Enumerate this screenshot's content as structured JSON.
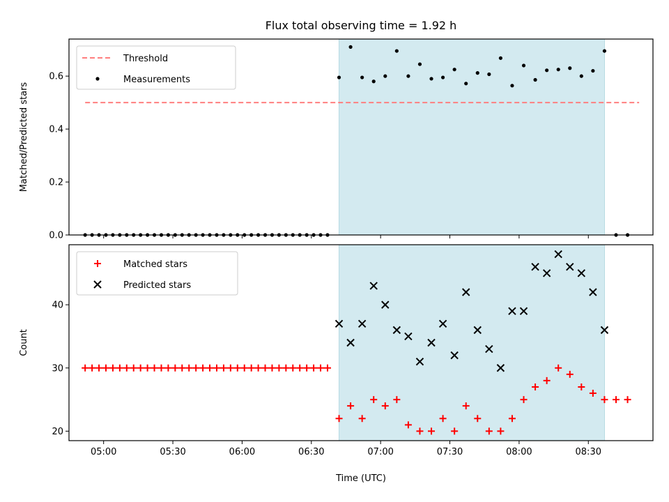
{
  "chart_data": [
    {
      "type": "scatter",
      "title": "Flux total observing time = 1.92 h",
      "xlabel": "",
      "ylabel": "Matched/Predicted stars",
      "ylim": [
        0,
        0.74
      ],
      "yticks": [
        "0.0",
        "0.2",
        "0.4",
        "0.6"
      ],
      "xticks": [
        "05:00",
        "05:30",
        "06:00",
        "06:30",
        "07:00",
        "07:30",
        "08:00",
        "08:30"
      ],
      "xlim": [
        "04:45",
        "08:58"
      ],
      "shaded_interval": [
        "06:42",
        "08:37"
      ],
      "shade_color": "#d3eaf0",
      "legend_position": "upper left",
      "threshold": {
        "name": "Threshold",
        "value": 0.5,
        "x_range": [
          "04:52",
          "08:52"
        ],
        "color": "#ff7f7f",
        "style": "dashed"
      },
      "series": [
        {
          "name": "Measurements",
          "marker": "dot",
          "color": "#000000",
          "points": [
            [
              "04:52",
              0
            ],
            [
              "04:55",
              0
            ],
            [
              "04:58",
              0
            ],
            [
              "05:01",
              0
            ],
            [
              "05:04",
              0
            ],
            [
              "05:07",
              0
            ],
            [
              "05:10",
              0
            ],
            [
              "05:13",
              0
            ],
            [
              "05:16",
              0
            ],
            [
              "05:19",
              0
            ],
            [
              "05:22",
              0
            ],
            [
              "05:25",
              0
            ],
            [
              "05:28",
              0
            ],
            [
              "05:31",
              0
            ],
            [
              "05:34",
              0
            ],
            [
              "05:37",
              0
            ],
            [
              "05:40",
              0
            ],
            [
              "05:43",
              0
            ],
            [
              "05:46",
              0
            ],
            [
              "05:49",
              0
            ],
            [
              "05:52",
              0
            ],
            [
              "05:55",
              0
            ],
            [
              "05:58",
              0
            ],
            [
              "06:01",
              0
            ],
            [
              "06:04",
              0
            ],
            [
              "06:07",
              0
            ],
            [
              "06:10",
              0
            ],
            [
              "06:13",
              0
            ],
            [
              "06:16",
              0
            ],
            [
              "06:19",
              0
            ],
            [
              "06:22",
              0
            ],
            [
              "06:25",
              0
            ],
            [
              "06:28",
              0
            ],
            [
              "06:31",
              0
            ],
            [
              "06:34",
              0
            ],
            [
              "06:37",
              0
            ],
            [
              "06:42",
              0.595
            ],
            [
              "06:47",
              0.71
            ],
            [
              "06:52",
              0.595
            ],
            [
              "06:57",
              0.58
            ],
            [
              "07:02",
              0.6
            ],
            [
              "07:07",
              0.695
            ],
            [
              "07:12",
              0.6
            ],
            [
              "07:17",
              0.645
            ],
            [
              "07:22",
              0.59
            ],
            [
              "07:27",
              0.595
            ],
            [
              "07:32",
              0.625
            ],
            [
              "07:37",
              0.572
            ],
            [
              "07:42",
              0.612
            ],
            [
              "07:47",
              0.607
            ],
            [
              "07:52",
              0.668
            ],
            [
              "07:57",
              0.564
            ],
            [
              "08:02",
              0.64
            ],
            [
              "08:07",
              0.586
            ],
            [
              "08:12",
              0.622
            ],
            [
              "08:17",
              0.625
            ],
            [
              "08:22",
              0.63
            ],
            [
              "08:27",
              0.6
            ],
            [
              "08:32",
              0.62
            ],
            [
              "08:37",
              0.695
            ],
            [
              "08:42",
              0
            ],
            [
              "08:47",
              0
            ]
          ]
        }
      ]
    },
    {
      "type": "scatter",
      "title": "",
      "xlabel": "Time (UTC)",
      "ylabel": "Count",
      "ylim": [
        18.5,
        49.5
      ],
      "yticks": [
        "20",
        "30",
        "40"
      ],
      "xticks": [
        "05:00",
        "05:30",
        "06:00",
        "06:30",
        "07:00",
        "07:30",
        "08:00",
        "08:30"
      ],
      "xlim": [
        "04:45",
        "08:58"
      ],
      "shaded_interval": [
        "06:42",
        "08:37"
      ],
      "legend_position": "upper left",
      "series": [
        {
          "name": "Matched stars",
          "marker": "plus",
          "color": "#ff0000",
          "points": [
            [
              "04:52",
              30
            ],
            [
              "04:55",
              30
            ],
            [
              "04:58",
              30
            ],
            [
              "05:01",
              30
            ],
            [
              "05:04",
              30
            ],
            [
              "05:07",
              30
            ],
            [
              "05:10",
              30
            ],
            [
              "05:13",
              30
            ],
            [
              "05:16",
              30
            ],
            [
              "05:19",
              30
            ],
            [
              "05:22",
              30
            ],
            [
              "05:25",
              30
            ],
            [
              "05:28",
              30
            ],
            [
              "05:31",
              30
            ],
            [
              "05:34",
              30
            ],
            [
              "05:37",
              30
            ],
            [
              "05:40",
              30
            ],
            [
              "05:43",
              30
            ],
            [
              "05:46",
              30
            ],
            [
              "05:49",
              30
            ],
            [
              "05:52",
              30
            ],
            [
              "05:55",
              30
            ],
            [
              "05:58",
              30
            ],
            [
              "06:01",
              30
            ],
            [
              "06:04",
              30
            ],
            [
              "06:07",
              30
            ],
            [
              "06:10",
              30
            ],
            [
              "06:13",
              30
            ],
            [
              "06:16",
              30
            ],
            [
              "06:19",
              30
            ],
            [
              "06:22",
              30
            ],
            [
              "06:25",
              30
            ],
            [
              "06:28",
              30
            ],
            [
              "06:31",
              30
            ],
            [
              "06:34",
              30
            ],
            [
              "06:37",
              30
            ],
            [
              "06:42",
              22
            ],
            [
              "06:47",
              24
            ],
            [
              "06:52",
              22
            ],
            [
              "06:57",
              25
            ],
            [
              "07:02",
              24
            ],
            [
              "07:07",
              25
            ],
            [
              "07:12",
              21
            ],
            [
              "07:17",
              20
            ],
            [
              "07:22",
              20
            ],
            [
              "07:27",
              22
            ],
            [
              "07:32",
              20
            ],
            [
              "07:37",
              24
            ],
            [
              "07:42",
              22
            ],
            [
              "07:47",
              20
            ],
            [
              "07:52",
              20
            ],
            [
              "07:57",
              22
            ],
            [
              "08:02",
              25
            ],
            [
              "08:07",
              27
            ],
            [
              "08:12",
              28
            ],
            [
              "08:17",
              30
            ],
            [
              "08:22",
              29
            ],
            [
              "08:27",
              27
            ],
            [
              "08:32",
              26
            ],
            [
              "08:37",
              25
            ],
            [
              "08:42",
              25
            ],
            [
              "08:47",
              25
            ]
          ]
        },
        {
          "name": "Predicted stars",
          "marker": "x",
          "color": "#000000",
          "points": [
            [
              "06:42",
              37
            ],
            [
              "06:47",
              34
            ],
            [
              "06:52",
              37
            ],
            [
              "06:57",
              43
            ],
            [
              "07:02",
              40
            ],
            [
              "07:07",
              36
            ],
            [
              "07:12",
              35
            ],
            [
              "07:17",
              31
            ],
            [
              "07:22",
              34
            ],
            [
              "07:27",
              37
            ],
            [
              "07:32",
              32
            ],
            [
              "07:37",
              42
            ],
            [
              "07:42",
              36
            ],
            [
              "07:47",
              33
            ],
            [
              "07:52",
              30
            ],
            [
              "07:57",
              39
            ],
            [
              "08:02",
              39
            ],
            [
              "08:07",
              46
            ],
            [
              "08:12",
              45
            ],
            [
              "08:17",
              48
            ],
            [
              "08:22",
              46
            ],
            [
              "08:27",
              45
            ],
            [
              "08:32",
              42
            ],
            [
              "08:37",
              36
            ]
          ]
        }
      ]
    }
  ]
}
